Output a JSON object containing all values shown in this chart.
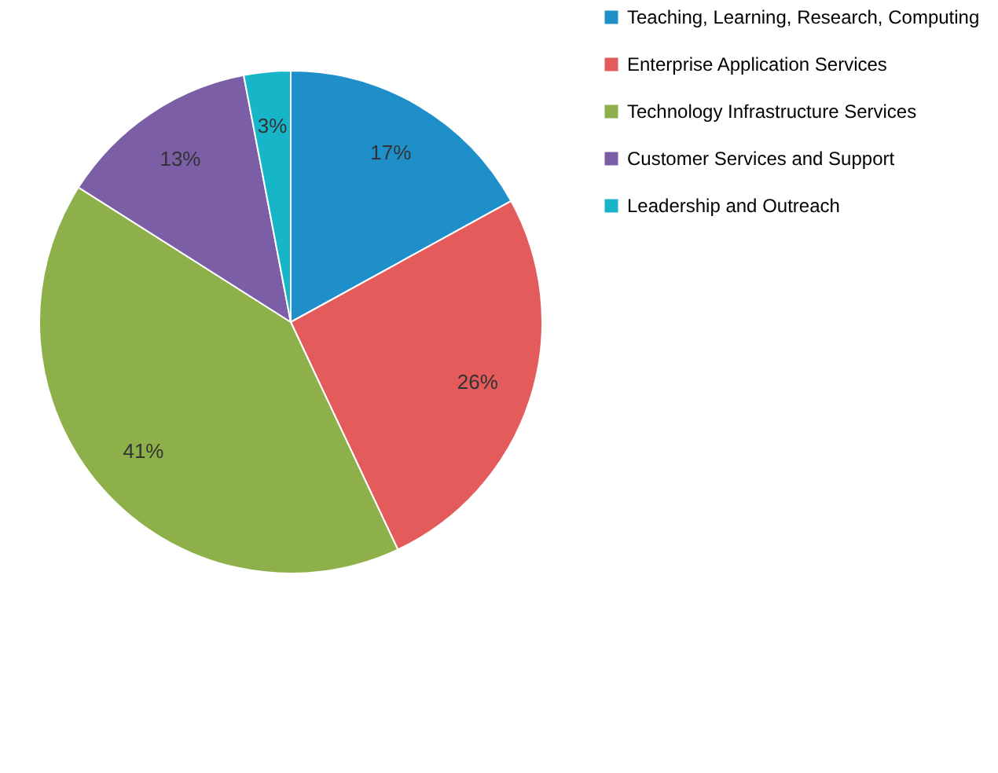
{
  "chart_data": {
    "type": "pie",
    "categories": [
      "Teaching, Learning, Research, Computing",
      "Enterprise Application Services",
      "Technology Infrastructure Services",
      "Customer Services and Support",
      "Leadership and Outreach"
    ],
    "values": [
      17,
      26,
      41,
      13,
      3
    ],
    "colors": [
      "#1f8fca",
      "#e35b5b",
      "#8db04a",
      "#7b5ea6",
      "#17b5c8"
    ],
    "value_labels": [
      "17%",
      "26%",
      "41%",
      "13%",
      "3%"
    ],
    "legend": "right"
  }
}
